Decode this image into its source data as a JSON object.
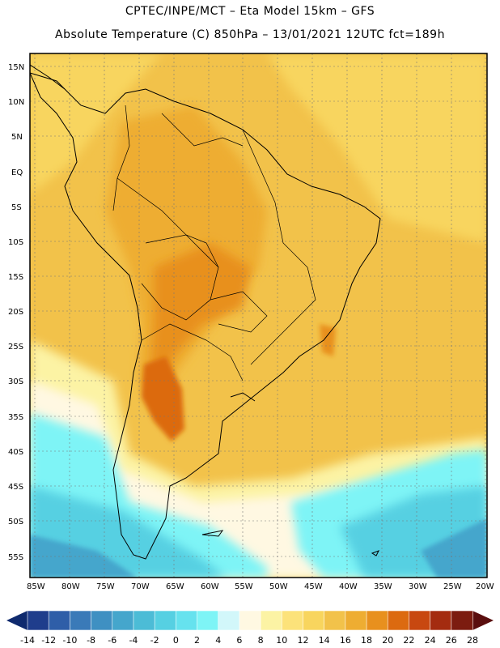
{
  "header": {
    "line1": "CPTEC/INPE/MCT –  Eta Model 15km – GFS",
    "line2": "Absolute Temperature (C) 850hPa – 13/01/2021 12UTC fct=189h"
  },
  "axes": {
    "lat_labels": [
      "15N",
      "10N",
      "5N",
      "EQ",
      "5S",
      "10S",
      "15S",
      "20S",
      "25S",
      "30S",
      "35S",
      "40S",
      "45S",
      "50S",
      "55S"
    ],
    "lon_labels": [
      "85W",
      "80W",
      "75W",
      "70W",
      "65W",
      "60W",
      "55W",
      "50W",
      "45W",
      "40W",
      "35W",
      "30W",
      "25W",
      "20W"
    ]
  },
  "colorbar": {
    "labels": [
      "-14",
      "-12",
      "-10",
      "-8",
      "-6",
      "-4",
      "-2",
      "0",
      "2",
      "4",
      "6",
      "8",
      "10",
      "12",
      "14",
      "16",
      "18",
      "20",
      "22",
      "24",
      "26",
      "28"
    ],
    "colors": [
      "#1f3d8c",
      "#2f5ea8",
      "#3a7ab8",
      "#3f90c2",
      "#45a6cc",
      "#4cbcd6",
      "#56d0e2",
      "#66e2ee",
      "#7ef4f6",
      "#d2f7fa",
      "#fff8e2",
      "#fcf3a4",
      "#fce27a",
      "#f8d55e",
      "#f2c24a",
      "#eead32",
      "#e8901e",
      "#dc6a10",
      "#c84810",
      "#a42c10",
      "#7c1c10"
    ],
    "left_arrow_color": "#0f2a6e",
    "right_arrow_color": "#5a0e0e"
  },
  "colors": {
    "warm_base": "#f2c24a",
    "warm_light": "#f8d55e",
    "hot": "#eead32",
    "hotter": "#e8901e",
    "hottest": "#dc6a10",
    "cool_pale": "#fcf3a4",
    "cream": "#fff8e2",
    "cold_1": "#d2f7fa",
    "cold_2": "#7ef4f6",
    "cold_3": "#56d0e2",
    "cold_4": "#45a6cc"
  }
}
